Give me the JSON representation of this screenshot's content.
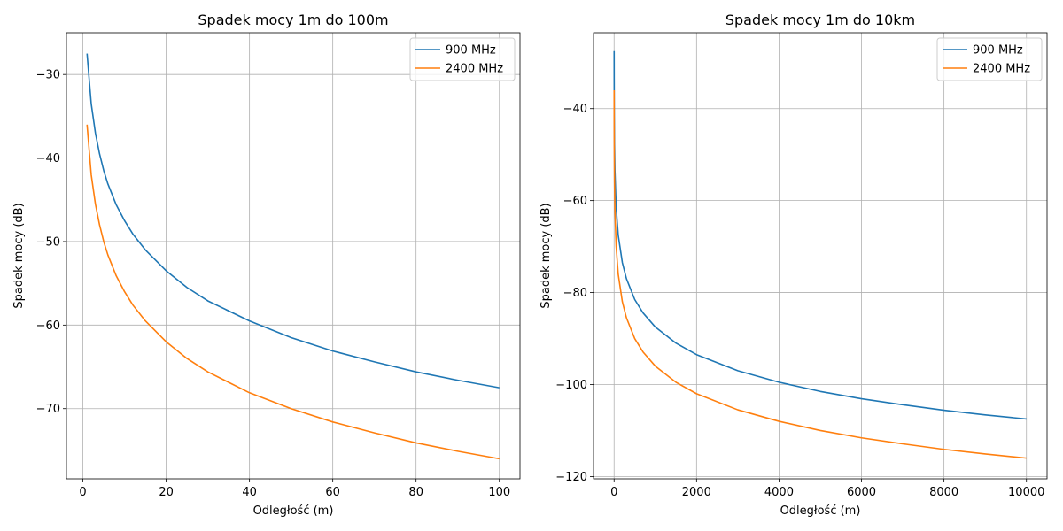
{
  "chart_data": [
    {
      "type": "line",
      "title": "Spadek mocy 1m do 100m",
      "xlabel": "Odległość (m)",
      "ylabel": "Spadek mocy (dB)",
      "xlim": [
        -3.95,
        104.95
      ],
      "ylim": [
        -78.4,
        -25.0
      ],
      "xticks": [
        0,
        20,
        40,
        60,
        80,
        100
      ],
      "yticks": [
        -70,
        -60,
        -50,
        -40,
        -30
      ],
      "grid": true,
      "legend_position": "top-right",
      "series": [
        {
          "name": "900 MHz",
          "color": "#1f77b4",
          "x": [
            1,
            2,
            3,
            4,
            5,
            6,
            8,
            10,
            12,
            15,
            20,
            25,
            30,
            40,
            50,
            60,
            70,
            80,
            90,
            100
          ],
          "y": [
            -27.5,
            -33.5,
            -37.0,
            -39.5,
            -41.5,
            -43.1,
            -45.6,
            -47.5,
            -49.1,
            -51.0,
            -53.5,
            -55.5,
            -57.1,
            -59.5,
            -61.5,
            -63.1,
            -64.4,
            -65.6,
            -66.6,
            -67.5
          ]
        },
        {
          "name": "2400 MHz",
          "color": "#ff7f0e",
          "x": [
            1,
            2,
            3,
            4,
            5,
            6,
            8,
            10,
            12,
            15,
            20,
            25,
            30,
            40,
            50,
            60,
            70,
            80,
            90,
            100
          ],
          "y": [
            -36.0,
            -42.0,
            -45.5,
            -48.0,
            -50.0,
            -51.6,
            -54.1,
            -56.0,
            -57.6,
            -59.5,
            -62.0,
            -64.0,
            -65.6,
            -68.1,
            -70.0,
            -71.6,
            -72.9,
            -74.1,
            -75.1,
            -76.0
          ]
        }
      ]
    },
    {
      "type": "line",
      "title": "Spadek mocy 1m do 10km",
      "xlabel": "Odległość (m)",
      "ylabel": "Spadek mocy (dB)",
      "xlim": [
        -499,
        10500
      ],
      "ylim": [
        -120.5,
        -23.5
      ],
      "xticks": [
        0,
        2000,
        4000,
        6000,
        8000,
        10000
      ],
      "yticks": [
        -120,
        -100,
        -80,
        -60,
        -40
      ],
      "grid": true,
      "legend_position": "top-right",
      "series": [
        {
          "name": "900 MHz",
          "color": "#1f77b4",
          "x": [
            1,
            2,
            5,
            10,
            20,
            50,
            100,
            200,
            300,
            500,
            700,
            1000,
            1500,
            2000,
            3000,
            4000,
            5000,
            6000,
            7000,
            8000,
            9000,
            10000
          ],
          "y": [
            -27.5,
            -33.5,
            -41.5,
            -47.5,
            -53.5,
            -61.5,
            -67.5,
            -73.5,
            -77.0,
            -81.5,
            -84.4,
            -87.5,
            -91.0,
            -93.5,
            -97.0,
            -99.5,
            -101.5,
            -103.1,
            -104.4,
            -105.6,
            -106.6,
            -107.5
          ]
        },
        {
          "name": "2400 MHz",
          "color": "#ff7f0e",
          "x": [
            1,
            2,
            5,
            10,
            20,
            50,
            100,
            200,
            300,
            500,
            700,
            1000,
            1500,
            2000,
            3000,
            4000,
            5000,
            6000,
            7000,
            8000,
            9000,
            10000
          ],
          "y": [
            -36.0,
            -42.0,
            -50.0,
            -56.0,
            -62.0,
            -70.0,
            -76.0,
            -82.0,
            -85.5,
            -90.0,
            -92.9,
            -96.0,
            -99.5,
            -102.0,
            -105.5,
            -108.0,
            -110.0,
            -111.6,
            -112.9,
            -114.1,
            -115.1,
            -116.0
          ]
        }
      ]
    }
  ]
}
